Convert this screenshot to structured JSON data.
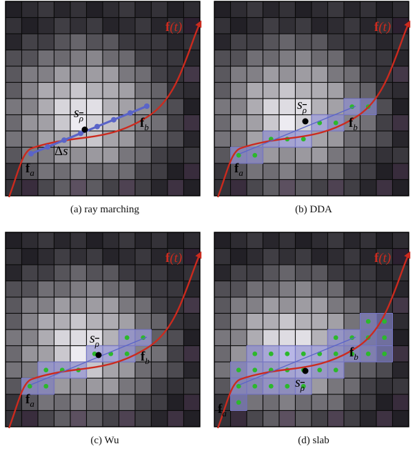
{
  "panels": [
    {
      "id": "a",
      "caption": "(a) ray marching",
      "curve_label_f": "f",
      "curve_label_t": "(t)",
      "start_label_main": "f",
      "start_label_sub": "a",
      "end_label_main": "f",
      "end_label_sub": "b",
      "sample_label_main": "s",
      "sample_label_sub": "ρ",
      "step_label": "Δs",
      "method": "ray-marching"
    },
    {
      "id": "b",
      "caption": "(b) DDA",
      "curve_label_f": "f",
      "curve_label_t": "(t)",
      "start_label_main": "f",
      "start_label_sub": "a",
      "end_label_main": "f",
      "end_label_sub": "b",
      "sample_label_main": "s",
      "sample_label_sub": "ρ",
      "method": "dda"
    },
    {
      "id": "c",
      "caption": "(c) Wu",
      "curve_label_f": "f",
      "curve_label_t": "(t)",
      "start_label_main": "f",
      "start_label_sub": "a",
      "end_label_main": "f",
      "end_label_sub": "b",
      "sample_label_main": "s",
      "sample_label_sub": "ρ",
      "method": "wu"
    },
    {
      "id": "d",
      "caption": "(d) slab",
      "curve_label_f": "f",
      "curve_label_t": "(t)",
      "start_label_main": "f",
      "start_label_sub": "a",
      "end_label_main": "f",
      "end_label_sub": "b",
      "sample_label_main": "s",
      "sample_label_sub": "ρ",
      "method": "slab"
    }
  ],
  "colors": {
    "curve": "#cc2a1e",
    "segment": "#5a64c8",
    "marching_dot": "#5a64c8",
    "cell_highlight": "#8c8cdc",
    "sample_dot": "#2cb82c",
    "midpoint": "#000000",
    "grid_line": "#0a0a0a"
  }
}
